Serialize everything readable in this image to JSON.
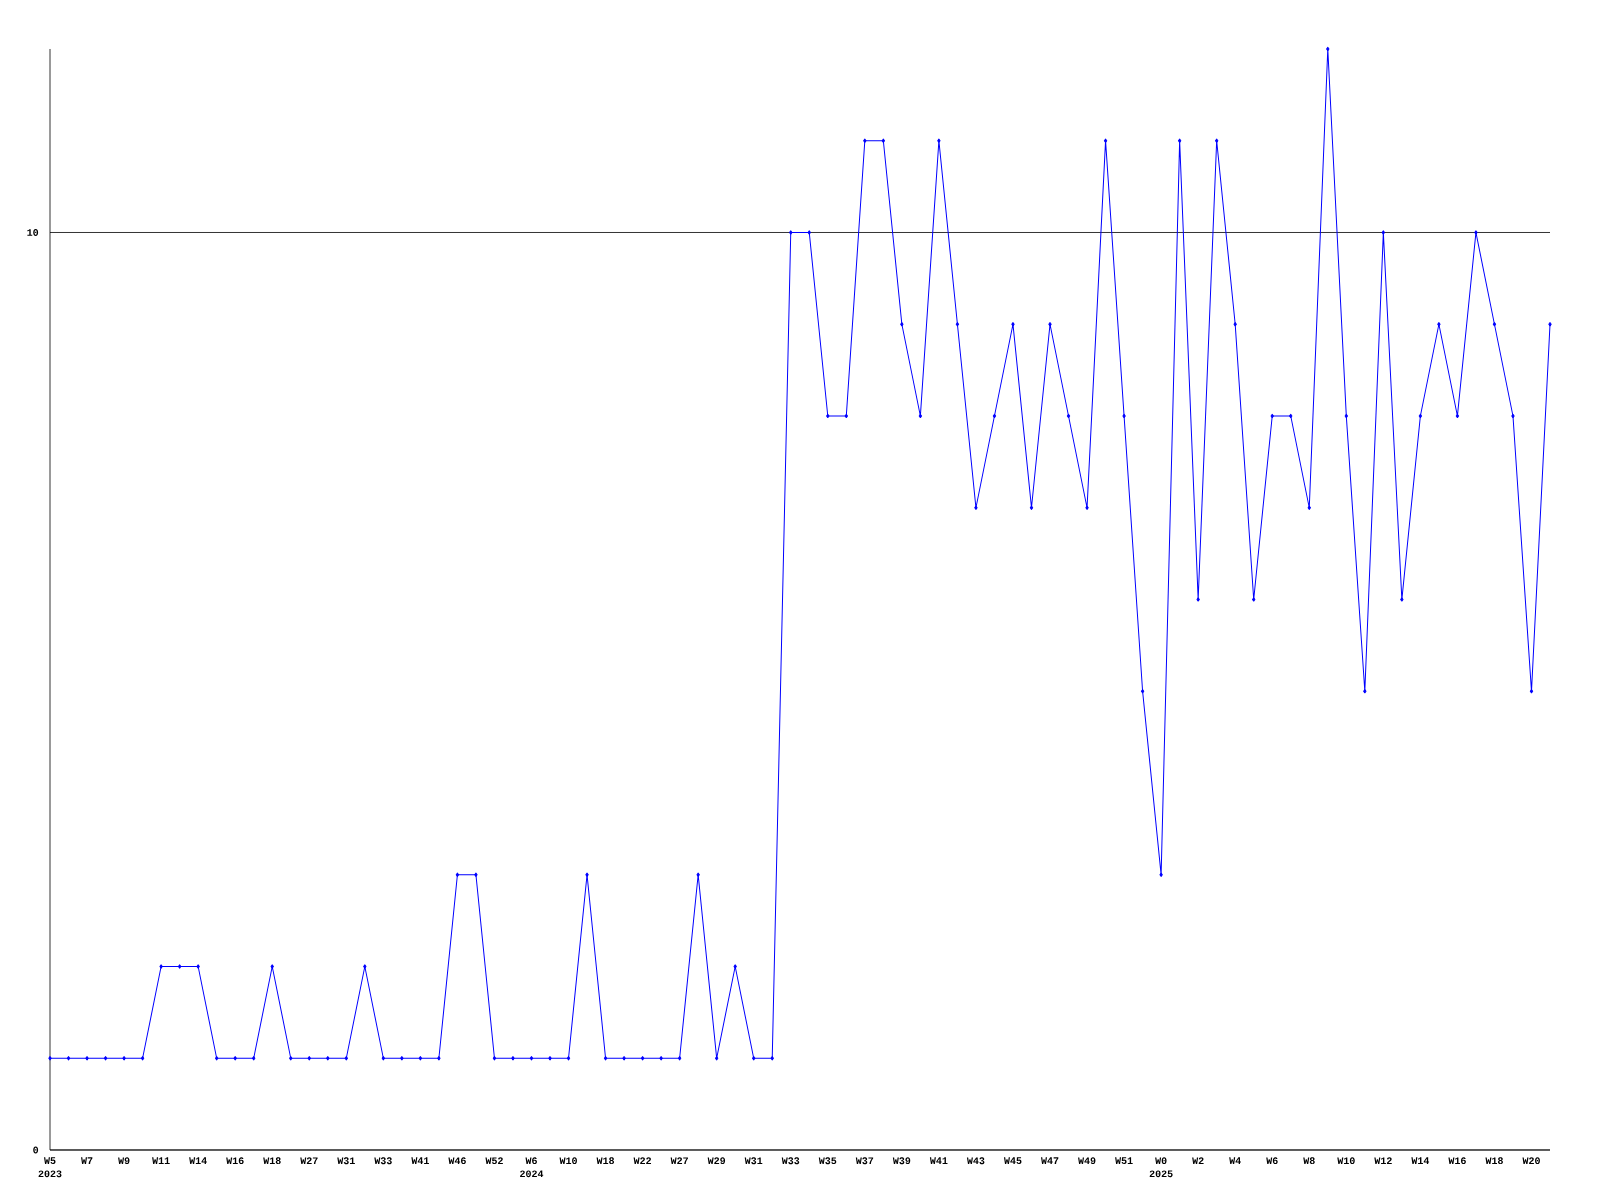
{
  "chart_data": {
    "type": "line",
    "categories": [
      "W5",
      null,
      "W7",
      null,
      "W9",
      null,
      "W11",
      null,
      "W14",
      null,
      "W16",
      null,
      "W18",
      null,
      "W27",
      null,
      "W31",
      null,
      "W33",
      null,
      "W41",
      null,
      "W46",
      null,
      "W52",
      null,
      "W6",
      null,
      "W10",
      null,
      "W18",
      null,
      "W22",
      null,
      "W27",
      null,
      "W29",
      null,
      "W31",
      null,
      "W33",
      null,
      "W35",
      null,
      "W37",
      null,
      "W39",
      null,
      "W41",
      null,
      "W43",
      null,
      "W45",
      null,
      "W47",
      null,
      "W49",
      null,
      "W51",
      null,
      "W0",
      null,
      "W2",
      null,
      "W4",
      null,
      "W6",
      null,
      "W8",
      null,
      "W10",
      null,
      "W12",
      null,
      "W14",
      null,
      "W16",
      null,
      "W18",
      null,
      "W20",
      null
    ],
    "values": [
      1,
      1,
      1,
      1,
      1,
      1,
      2,
      2,
      2,
      1,
      1,
      1,
      2,
      1,
      1,
      1,
      1,
      2,
      1,
      1,
      1,
      1,
      3,
      3,
      1,
      1,
      1,
      1,
      1,
      3,
      1,
      1,
      1,
      1,
      1,
      3,
      1,
      2,
      1,
      1,
      10,
      10,
      8,
      8,
      11,
      11,
      9,
      8,
      11,
      9,
      7,
      8,
      9,
      7,
      9,
      8,
      7,
      11,
      8,
      5,
      3,
      11,
      6,
      11,
      9,
      6,
      8,
      8,
      7,
      12,
      8,
      5,
      10,
      6,
      8,
      9,
      8,
      10,
      9,
      8,
      5,
      9
    ],
    "color": "#0000ff",
    "ylim": [
      0,
      12
    ],
    "yticks": [
      0,
      10
    ],
    "grid": "y",
    "marker": "diamond",
    "line_style": "solid",
    "annotations": [
      "2023",
      "2024",
      "2025"
    ]
  }
}
